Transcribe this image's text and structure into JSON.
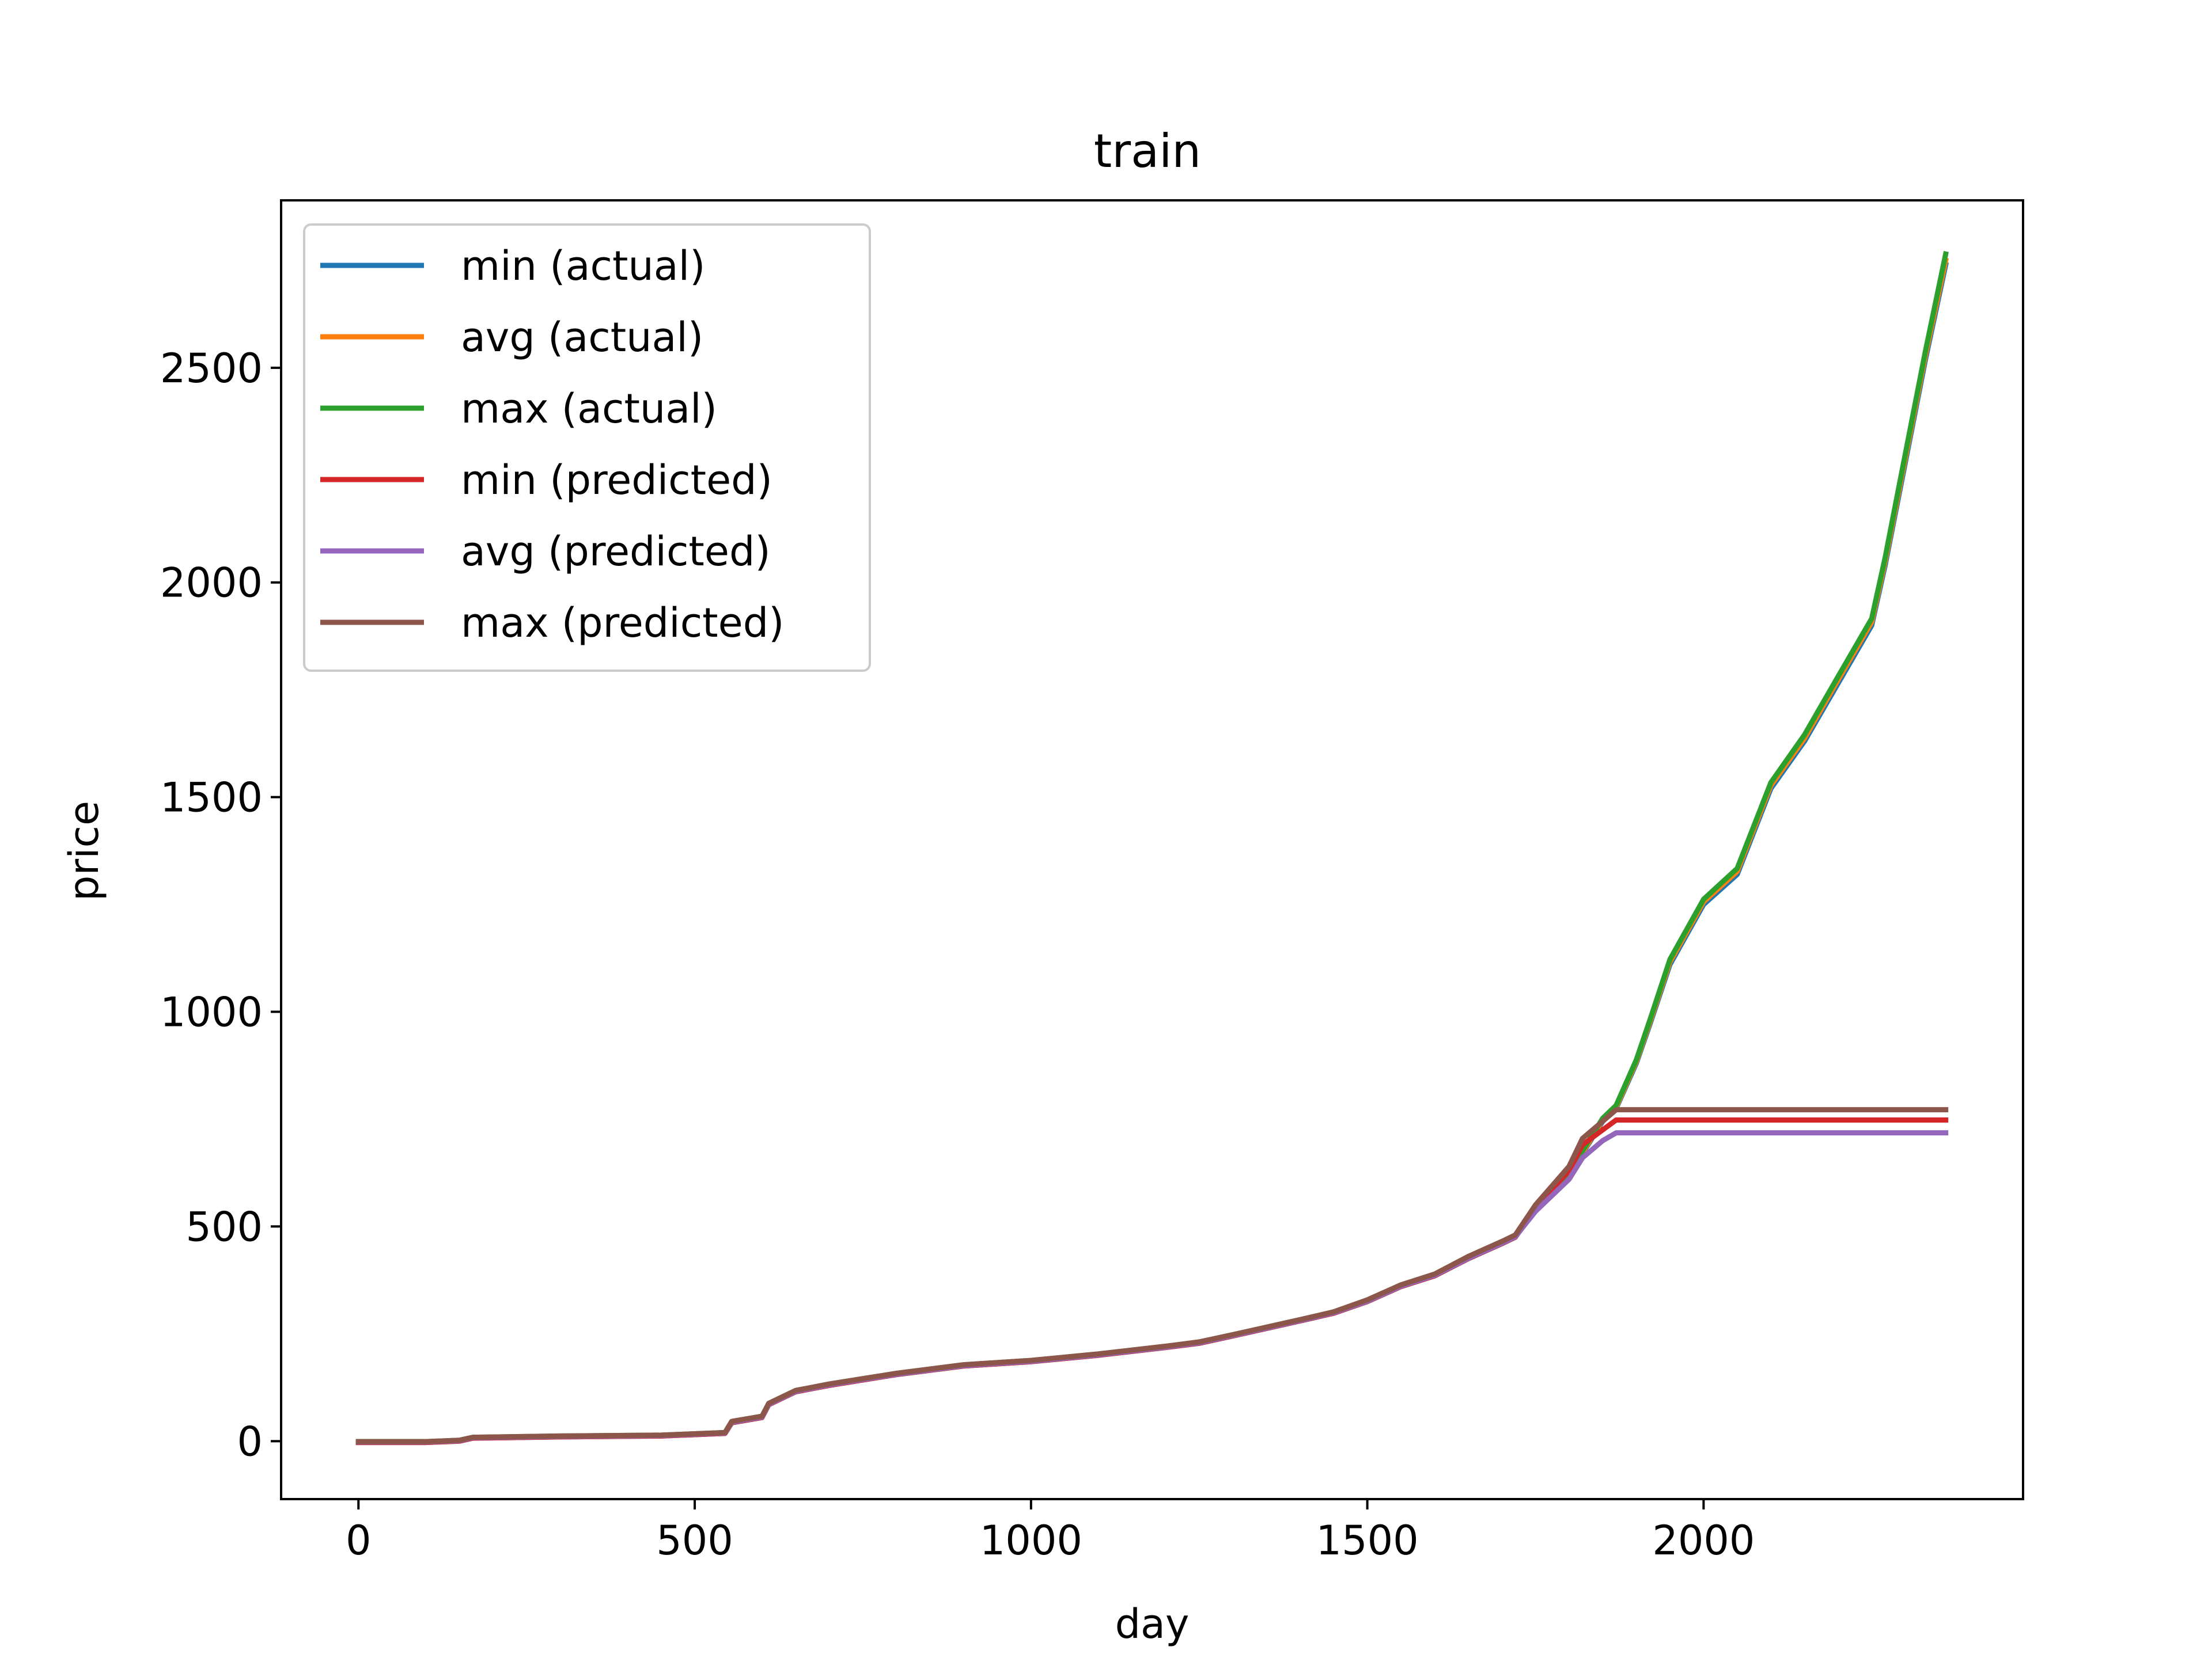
{
  "chart_data": {
    "type": "line",
    "title": "train",
    "xlabel": "day",
    "ylabel": "price",
    "xlim": [
      -115,
      2475
    ],
    "ylim": [
      -135,
      2890
    ],
    "xticks": [
      0,
      500,
      1000,
      1500,
      2000
    ],
    "yticks": [
      0,
      500,
      1000,
      1500,
      2000,
      2500
    ],
    "legend_position": "upper-left",
    "grid": false,
    "series": [
      {
        "name": "min (actual)",
        "color": "#1f77b4",
        "x": [
          0,
          100,
          150,
          170,
          300,
          450,
          545,
          555,
          600,
          610,
          650,
          700,
          800,
          900,
          1000,
          1100,
          1200,
          1250,
          1300,
          1400,
          1450,
          1500,
          1550,
          1600,
          1650,
          1700,
          1720,
          1750,
          1800,
          1850,
          1870,
          1900,
          1920,
          1950,
          2000,
          2050,
          2100,
          2150,
          2200,
          2250,
          2270,
          2300,
          2330,
          2360
        ],
        "y": [
          -3,
          -3,
          0,
          7,
          10,
          12,
          18,
          43,
          55,
          85,
          115,
          130,
          155,
          175,
          185,
          200,
          218,
          228,
          245,
          280,
          298,
          325,
          360,
          385,
          425,
          460,
          475,
          540,
          620,
          745,
          775,
          880,
          970,
          1110,
          1250,
          1320,
          1520,
          1630,
          1765,
          1900,
          2040,
          2280,
          2520,
          2740
        ]
      },
      {
        "name": "avg (actual)",
        "color": "#ff7f0e",
        "x": [
          0,
          100,
          150,
          170,
          300,
          450,
          545,
          555,
          600,
          610,
          650,
          700,
          800,
          900,
          1000,
          1100,
          1200,
          1250,
          1300,
          1400,
          1450,
          1500,
          1550,
          1600,
          1650,
          1700,
          1720,
          1750,
          1800,
          1850,
          1870,
          1900,
          1920,
          1950,
          2000,
          2050,
          2100,
          2150,
          2200,
          2250,
          2270,
          2300,
          2330,
          2360
        ],
        "y": [
          -2,
          -2,
          1,
          8,
          11,
          13,
          19,
          44,
          56,
          86,
          116,
          131,
          156,
          176,
          186,
          201,
          219,
          229,
          246,
          281,
          299,
          326,
          361,
          386,
          426,
          461,
          476,
          542,
          622,
          748,
          778,
          884,
          975,
          1116,
          1256,
          1327,
          1527,
          1637,
          1773,
          1908,
          2049,
          2290,
          2530,
          2750
        ]
      },
      {
        "name": "max (actual)",
        "color": "#2ca02c",
        "x": [
          0,
          100,
          150,
          170,
          300,
          450,
          545,
          555,
          600,
          610,
          650,
          700,
          800,
          900,
          1000,
          1100,
          1200,
          1250,
          1300,
          1400,
          1450,
          1500,
          1550,
          1600,
          1650,
          1700,
          1720,
          1750,
          1800,
          1850,
          1870,
          1900,
          1920,
          1950,
          2000,
          2050,
          2100,
          2150,
          2200,
          2250,
          2270,
          2300,
          2330,
          2360
        ],
        "y": [
          -1,
          -1,
          2,
          9,
          12,
          14,
          20,
          46,
          58,
          88,
          118,
          133,
          158,
          178,
          188,
          203,
          221,
          231,
          248,
          283,
          301,
          329,
          364,
          389,
          430,
          465,
          480,
          545,
          626,
          752,
          782,
          888,
          980,
          1122,
          1262,
          1334,
          1534,
          1645,
          1781,
          1916,
          2058,
          2300,
          2540,
          2765
        ]
      },
      {
        "name": "min (predicted)",
        "color": "#d62728",
        "x": [
          0,
          100,
          150,
          170,
          300,
          450,
          545,
          555,
          600,
          610,
          650,
          700,
          800,
          900,
          1000,
          1100,
          1200,
          1250,
          1300,
          1400,
          1450,
          1500,
          1550,
          1600,
          1650,
          1700,
          1720,
          1750,
          1800,
          1820,
          1850,
          1870,
          2360
        ],
        "y": [
          -3,
          -3,
          0,
          7,
          10,
          12,
          18,
          43,
          55,
          85,
          115,
          130,
          155,
          175,
          185,
          200,
          218,
          228,
          245,
          280,
          298,
          325,
          360,
          385,
          425,
          460,
          475,
          545,
          630,
          690,
          725,
          748,
          748
        ]
      },
      {
        "name": "avg (predicted)",
        "color": "#9467bd",
        "x": [
          0,
          100,
          150,
          170,
          300,
          450,
          545,
          555,
          600,
          610,
          650,
          700,
          800,
          900,
          1000,
          1100,
          1200,
          1250,
          1300,
          1400,
          1450,
          1500,
          1550,
          1600,
          1650,
          1700,
          1720,
          1750,
          1800,
          1820,
          1850,
          1870,
          2360
        ],
        "y": [
          -2,
          -2,
          1,
          8,
          11,
          13,
          19,
          44,
          56,
          86,
          116,
          131,
          156,
          176,
          186,
          201,
          219,
          229,
          246,
          281,
          299,
          326,
          361,
          386,
          426,
          461,
          476,
          535,
          610,
          660,
          700,
          718,
          718
        ]
      },
      {
        "name": "max (predicted)",
        "color": "#8c564b",
        "x": [
          0,
          100,
          150,
          170,
          300,
          450,
          545,
          555,
          600,
          610,
          650,
          700,
          800,
          900,
          1000,
          1100,
          1200,
          1250,
          1300,
          1400,
          1450,
          1500,
          1550,
          1600,
          1650,
          1700,
          1720,
          1750,
          1800,
          1820,
          1850,
          1870,
          2360
        ],
        "y": [
          -1,
          -1,
          2,
          9,
          12,
          14,
          20,
          46,
          58,
          88,
          118,
          133,
          158,
          178,
          188,
          203,
          221,
          231,
          248,
          283,
          301,
          329,
          364,
          389,
          430,
          465,
          480,
          550,
          640,
          705,
          745,
          772,
          772
        ]
      }
    ]
  }
}
